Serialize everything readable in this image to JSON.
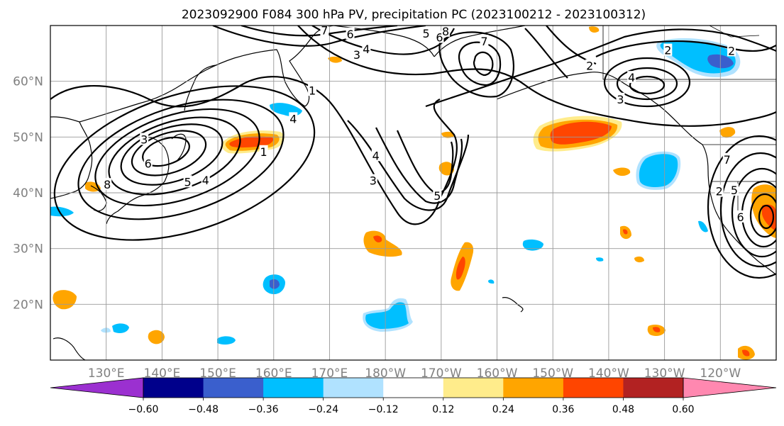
{
  "chart_data": {
    "type": "map",
    "title": "2023092900 F084 300 hPa PV, precipitation PC (2023100212 - 2023100312)",
    "lon_range": [
      120,
      250
    ],
    "lat_range": [
      10,
      70
    ],
    "xticks": [
      {
        "lon": 130,
        "label": "130°E"
      },
      {
        "lon": 140,
        "label": "140°E"
      },
      {
        "lon": 150,
        "label": "150°E"
      },
      {
        "lon": 160,
        "label": "160°E"
      },
      {
        "lon": 170,
        "label": "170°E"
      },
      {
        "lon": 180,
        "label": "180°W"
      },
      {
        "lon": 190,
        "label": "170°W"
      },
      {
        "lon": 200,
        "label": "160°W"
      },
      {
        "lon": 210,
        "label": "150°W"
      },
      {
        "lon": 220,
        "label": "140°W"
      },
      {
        "lon": 230,
        "label": "130°W"
      },
      {
        "lon": 240,
        "label": "120°W"
      }
    ],
    "yticks": [
      {
        "lat": 20,
        "label": "20°N"
      },
      {
        "lat": 30,
        "label": "30°N"
      },
      {
        "lat": 40,
        "label": "40°N"
      },
      {
        "lat": 50,
        "label": "50°N"
      },
      {
        "lat": 60,
        "label": "60°N"
      }
    ],
    "grid": true,
    "colorbar": {
      "levels": [
        -0.6,
        -0.48,
        -0.36,
        -0.24,
        -0.12,
        0.12,
        0.24,
        0.36,
        0.48,
        0.6
      ],
      "tick_labels": [
        "−0.60",
        "−0.48",
        "−0.36",
        "−0.24",
        "−0.12",
        "0.12",
        "0.24",
        "0.36",
        "0.48",
        "0.60"
      ],
      "colors": [
        "#9b30d0",
        "#00008b",
        "#3a5fcd",
        "#00bfff",
        "#b0e2ff",
        "#ffffff",
        "#ffec8b",
        "#ffa500",
        "#ff4500",
        "#b22222",
        "#ff88b0"
      ],
      "extend": "both"
    },
    "pv_contour_labels": [
      {
        "lon": 163.5,
        "lat": 53.3,
        "label": "4"
      },
      {
        "lon": 166.9,
        "lat": 58.4,
        "label": "1"
      },
      {
        "lon": 158.2,
        "lat": 47.4,
        "label": "1"
      },
      {
        "lon": 136.8,
        "lat": 49.6,
        "label": "3"
      },
      {
        "lon": 137.5,
        "lat": 45.3,
        "label": "6"
      },
      {
        "lon": 130.2,
        "lat": 41.5,
        "label": "8"
      },
      {
        "lon": 144.6,
        "lat": 42.0,
        "label": "5"
      },
      {
        "lon": 147.8,
        "lat": 42.3,
        "label": "4"
      },
      {
        "lon": 174.9,
        "lat": 64.8,
        "label": "3"
      },
      {
        "lon": 176.6,
        "lat": 65.8,
        "label": "4"
      },
      {
        "lon": 173.7,
        "lat": 68.5,
        "label": "6"
      },
      {
        "lon": 169.1,
        "lat": 69.2,
        "label": "7"
      },
      {
        "lon": 187.3,
        "lat": 68.6,
        "label": "5"
      },
      {
        "lon": 189.7,
        "lat": 67.9,
        "label": "6"
      },
      {
        "lon": 190.8,
        "lat": 69.0,
        "label": "8"
      },
      {
        "lon": 197.7,
        "lat": 67.2,
        "label": "7"
      },
      {
        "lon": 178.3,
        "lat": 46.7,
        "label": "4"
      },
      {
        "lon": 177.8,
        "lat": 42.2,
        "label": "3"
      },
      {
        "lon": 189.3,
        "lat": 39.5,
        "label": "5"
      },
      {
        "lon": 216.6,
        "lat": 62.8,
        "label": "2"
      },
      {
        "lon": 224.1,
        "lat": 60.7,
        "label": "4"
      },
      {
        "lon": 222.1,
        "lat": 56.8,
        "label": "3"
      },
      {
        "lon": 230.6,
        "lat": 65.6,
        "label": "2"
      },
      {
        "lon": 242.0,
        "lat": 65.5,
        "label": "2"
      },
      {
        "lon": 241.2,
        "lat": 46.0,
        "label": "7"
      },
      {
        "lon": 239.8,
        "lat": 40.3,
        "label": "2"
      },
      {
        "lon": 242.5,
        "lat": 40.5,
        "label": "5"
      },
      {
        "lon": 243.6,
        "lat": 35.7,
        "label": "6"
      }
    ]
  }
}
